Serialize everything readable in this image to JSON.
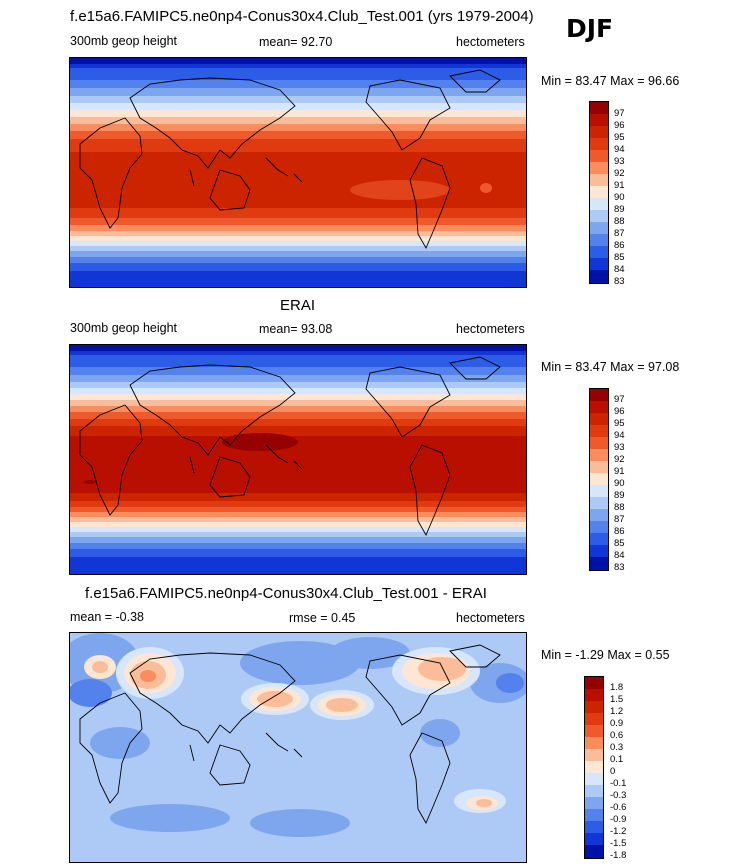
{
  "season": "DJF",
  "panels": [
    {
      "title": "f.e15a6.FAMIPC5.ne0np4-Conus30x4.Club_Test.001 (yrs 1979-2004)",
      "left_label": "300mb geop height",
      "center_label": "mean=  92.70",
      "units": "hectometers",
      "minmax": "Min =  83.47 Max =  96.66",
      "colorbar_ticks": [
        "97",
        "96",
        "95",
        "94",
        "93",
        "92",
        "91",
        "90",
        "89",
        "88",
        "87",
        "86",
        "85",
        "84",
        "83"
      ],
      "colors": [
        "#950000",
        "#b80f00",
        "#cd2400",
        "#e03a10",
        "#ef5a2c",
        "#f98d5e",
        "#fbbc9a",
        "#fde6d3",
        "#d8e6fb",
        "#adc9f5",
        "#7ea6ef",
        "#5382ec",
        "#2d5de6",
        "#1236d6",
        "#0012a6"
      ]
    },
    {
      "title": "ERAI",
      "left_label": "300mb geop height",
      "center_label": "mean=  93.08",
      "units": "hectometers",
      "minmax": "Min =  83.47 Max =  97.08",
      "colorbar_ticks": [
        "97",
        "96",
        "95",
        "94",
        "93",
        "92",
        "91",
        "90",
        "89",
        "88",
        "87",
        "86",
        "85",
        "84",
        "83"
      ],
      "colors": [
        "#950000",
        "#b80f00",
        "#cd2400",
        "#e03a10",
        "#ef5a2c",
        "#f98d5e",
        "#fbbc9a",
        "#fde6d3",
        "#d8e6fb",
        "#adc9f5",
        "#7ea6ef",
        "#5382ec",
        "#2d5de6",
        "#1236d6",
        "#0012a6"
      ]
    },
    {
      "title": "f.e15a6.FAMIPC5.ne0np4-Conus30x4.Club_Test.001 - ERAI",
      "left_label": "mean =  -0.38",
      "center_label": "rmse =   0.45",
      "units": "hectometers",
      "minmax": "Min =  -1.29 Max =   0.55",
      "colorbar_ticks": [
        "1.8",
        "1.5",
        "1.2",
        "0.9",
        "0.6",
        "0.3",
        "0.1",
        "0",
        "-0.1",
        "-0.3",
        "-0.6",
        "-0.9",
        "-1.2",
        "-1.5",
        "-1.8"
      ],
      "colors": [
        "#950000",
        "#b80f00",
        "#cd2400",
        "#e03a10",
        "#ef5a2c",
        "#f98d5e",
        "#fbbc9a",
        "#fde6d3",
        "#d8e6fb",
        "#adc9f5",
        "#7ea6ef",
        "#5382ec",
        "#2d5de6",
        "#1236d6",
        "#0012a6"
      ]
    }
  ]
}
